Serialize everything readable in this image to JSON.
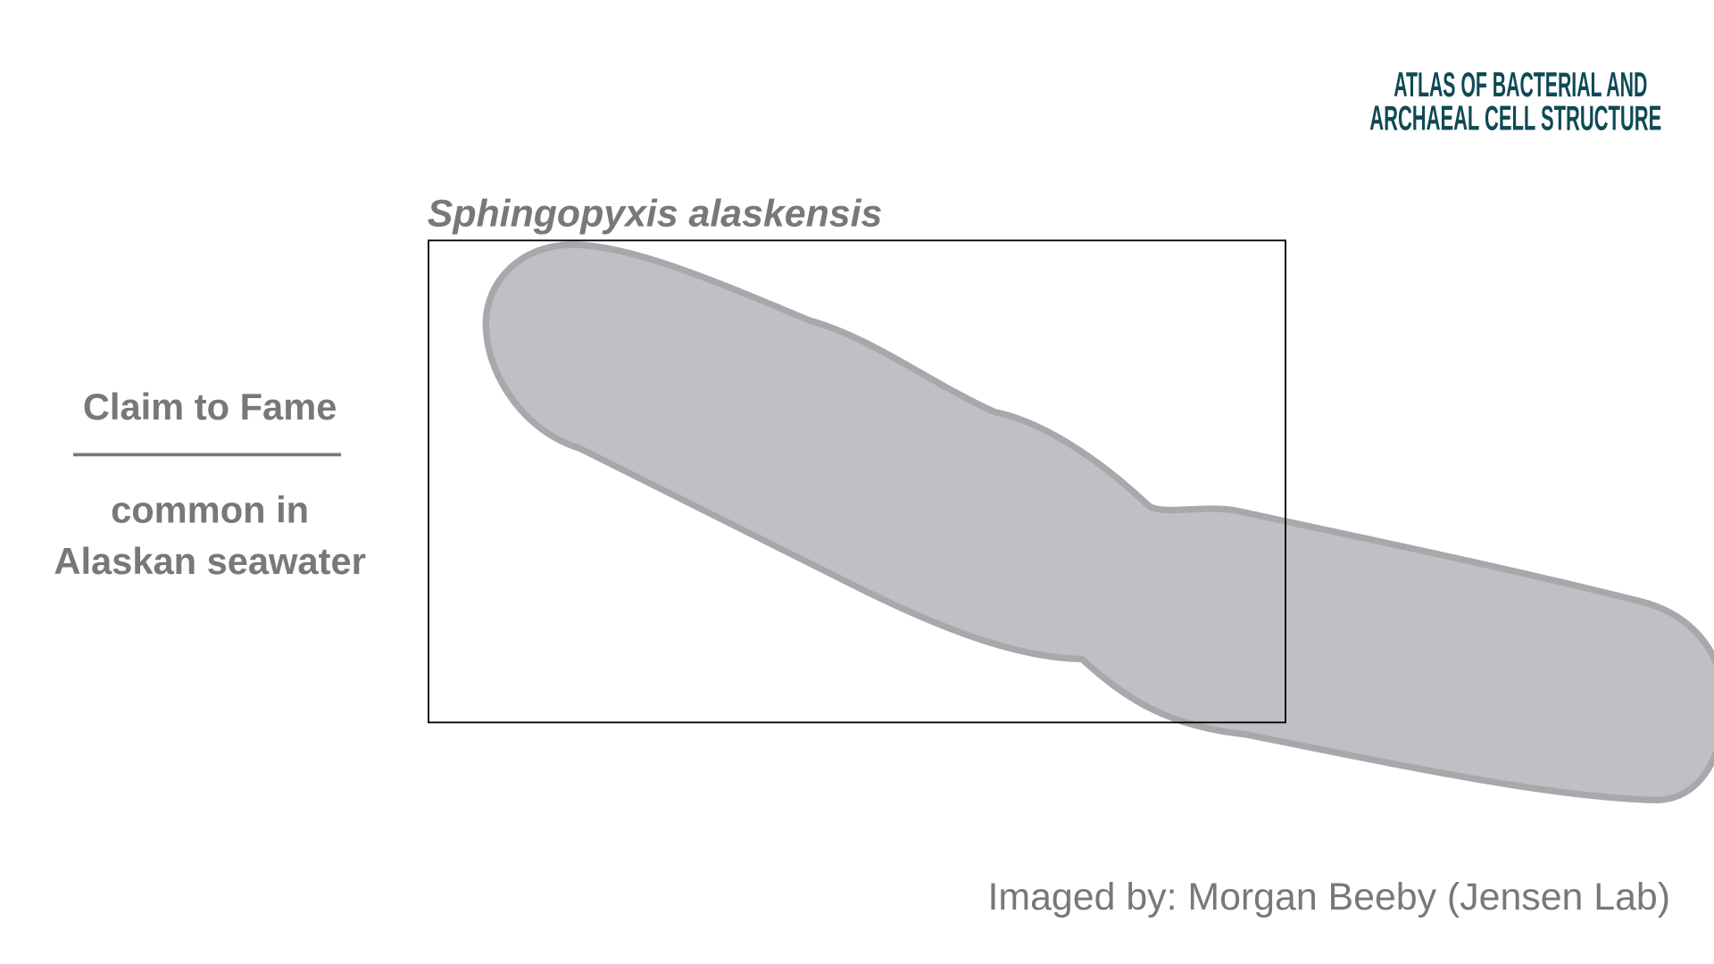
{
  "logo": {
    "line1": "ATLAS OF BACTERIAL AND",
    "line2": "ARCHAEAL CELL STRUCTURE"
  },
  "title": "Sphingopyxis alaskensis",
  "claim": {
    "heading": "Claim to Fame",
    "lines": [
      "common in",
      "Alaskan seawater"
    ]
  },
  "credit": "Imaged by: Morgan Beeby (Jensen Lab)"
}
